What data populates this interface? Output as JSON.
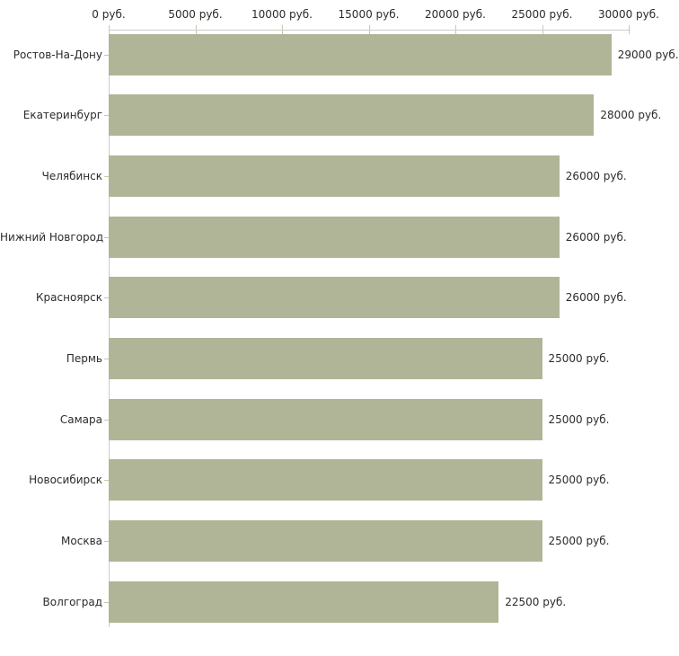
{
  "chart_data": {
    "type": "bar",
    "orientation": "horizontal",
    "title": "",
    "legend": false,
    "categories": [
      "Ростов-На-Дону",
      "Екатеринбург",
      "Челябинск",
      "Нижний Новгород",
      "Красноярск",
      "Пермь",
      "Самара",
      "Новосибирск",
      "Москва",
      "Волгоград"
    ],
    "values": [
      29000,
      28000,
      26000,
      26000,
      26000,
      25000,
      25000,
      25000,
      25000,
      22500
    ],
    "value_labels": [
      "29000 руб.",
      "28000 руб.",
      "26000 руб.",
      "26000 руб.",
      "26000 руб.",
      "25000 руб.",
      "25000 руб.",
      "25000 руб.",
      "25000 руб.",
      "22500 руб."
    ],
    "x_axis": {
      "position": "top",
      "min": 0,
      "max": 30000,
      "ticks": [
        0,
        5000,
        10000,
        15000,
        20000,
        25000,
        30000
      ],
      "tick_labels": [
        "0 руб.",
        "5000 руб.",
        "10000 руб.",
        "15000 руб.",
        "20000 руб.",
        "25000 руб.",
        "30000 руб."
      ]
    },
    "colors": {
      "bar": "#b1b598",
      "axis_line": "#cccccc",
      "tick": "#c9c9a8",
      "text": "#2b2b2b",
      "background": "#ffffff"
    }
  }
}
